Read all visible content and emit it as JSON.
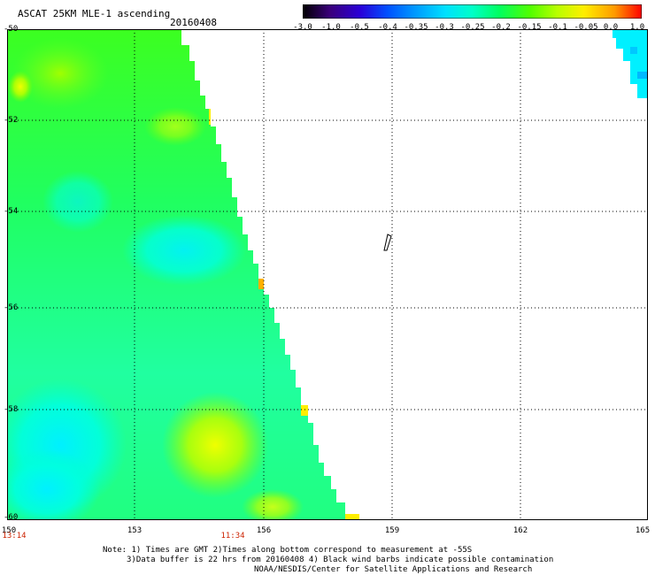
{
  "header": {
    "title": "ASCAT 25KM MLE-1 ascending",
    "date": "20160408"
  },
  "colorbar": {
    "labels": [
      "-3.0",
      "-1.0",
      "-0.5",
      "-0.4",
      "-0.35",
      "-0.3",
      "-0.25",
      "-0.2",
      "-0.15",
      "-0.1",
      "-0.05",
      "0.0",
      "1.0"
    ],
    "colors": [
      "#000000",
      "#3a007a",
      "#2a00d8",
      "#0050ff",
      "#0098ff",
      "#00e0ff",
      "#00ffc8",
      "#00ff60",
      "#50ff00",
      "#b8ff00",
      "#ffee00",
      "#ff9a00",
      "#ff0000"
    ]
  },
  "axes": {
    "lat_labels": [
      "-50",
      "-52",
      "-54",
      "-56",
      "-58",
      "-60"
    ],
    "lon_labels": [
      "150",
      "153",
      "156",
      "159",
      "162",
      "165"
    ]
  },
  "times": {
    "left": "13:14",
    "mid": "11:34"
  },
  "notes": {
    "line1": "Note: 1) Times are GMT 2)Times along bottom correspond to measurement at -55S",
    "line2": "3)Data buffer is 22 hrs from 20160408 4) Black wind barbs indicate possible contamination",
    "line3": "NOAA/NESDIS/Center for Satellite Applications and Research"
  }
}
